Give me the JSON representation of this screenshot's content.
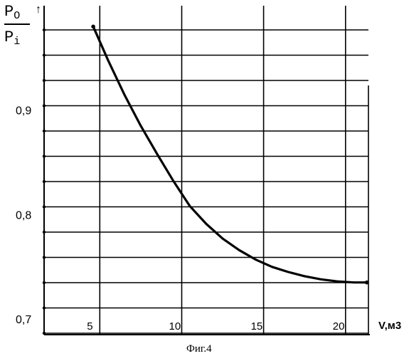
{
  "chart_data": {
    "type": "line",
    "ylabel_numerator": "P",
    "ylabel_numerator_sub": "O",
    "ylabel_denominator": "P",
    "ylabel_denominator_sub": "i",
    "y_arrow": "↑",
    "xlabel": "V,м3",
    "caption": "Фиг.4",
    "xlim": [
      1.6,
      21.4
    ],
    "ylim": [
      0.685,
      1.0
    ],
    "x_ticks": [
      5,
      10,
      15,
      20
    ],
    "x_tick_labels": [
      "5",
      "10",
      "15",
      "20"
    ],
    "y_ticks": [
      0.7,
      0.8,
      0.9
    ],
    "y_tick_labels": [
      "0,7",
      "0,8",
      "0,9"
    ],
    "grid": true,
    "series": [
      {
        "x": [
          4.6,
          5.5,
          6.5,
          7.5,
          8.5,
          9.5,
          10.5,
          11.5,
          12.5,
          13.5,
          14.5,
          15.5,
          16.5,
          17.5,
          18.5,
          19.5,
          20.5,
          21.3
        ],
        "y": [
          0.98,
          0.948,
          0.915,
          0.885,
          0.858,
          0.832,
          0.808,
          0.791,
          0.777,
          0.766,
          0.757,
          0.75,
          0.745,
          0.741,
          0.738,
          0.736,
          0.735,
          0.735
        ]
      }
    ]
  }
}
